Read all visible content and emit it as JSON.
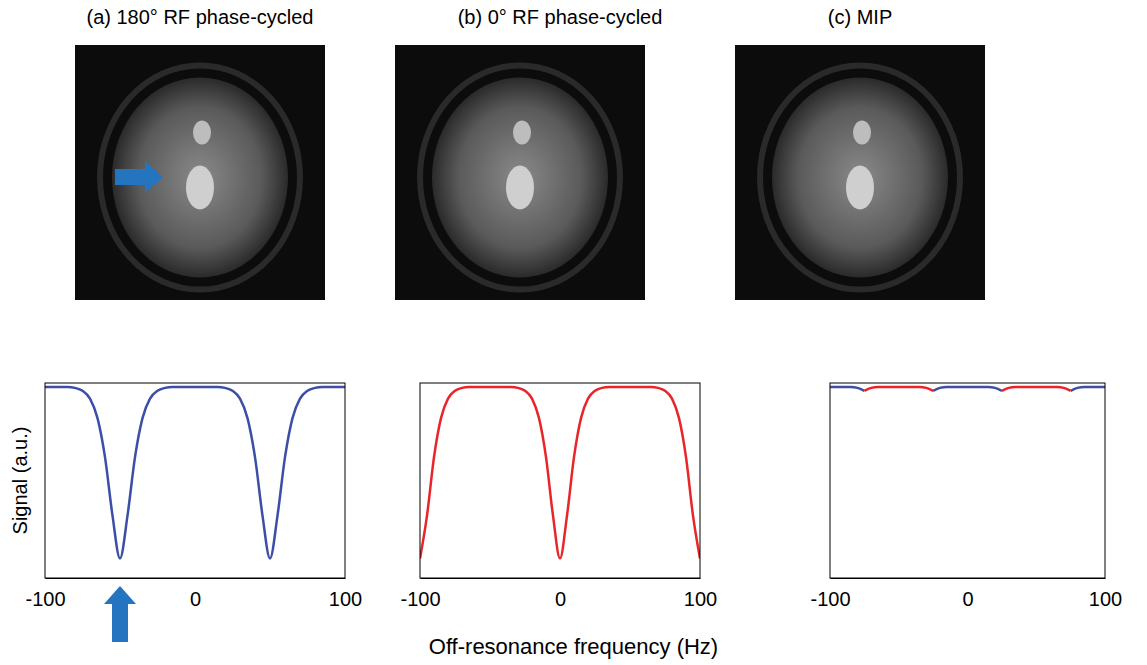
{
  "chart_data": [
    {
      "type": "line",
      "title": "(a) 180° RF phase-cycled",
      "ylabel": "Signal (a.u.)",
      "x": [
        -100,
        -95,
        -90,
        -85,
        -80,
        -75,
        -70,
        -65,
        -60,
        -55,
        -50,
        -45,
        -40,
        -35,
        -30,
        -25,
        -20,
        -15,
        -10,
        -5,
        0,
        5,
        10,
        15,
        20,
        25,
        30,
        35,
        40,
        45,
        50,
        55,
        60,
        65,
        70,
        75,
        80,
        85,
        90,
        95,
        100
      ],
      "series": [
        {
          "color": "#3c4ea6",
          "values": [
            0.98,
            0.98,
            0.98,
            0.98,
            0.975,
            0.96,
            0.92,
            0.82,
            0.62,
            0.32,
            0.1,
            0.32,
            0.62,
            0.82,
            0.92,
            0.96,
            0.975,
            0.98,
            0.98,
            0.98,
            0.98,
            0.98,
            0.98,
            0.98,
            0.975,
            0.96,
            0.92,
            0.82,
            0.62,
            0.32,
            0.1,
            0.32,
            0.62,
            0.82,
            0.92,
            0.96,
            0.975,
            0.98,
            0.98,
            0.98,
            0.98
          ]
        }
      ],
      "xlim": [
        -100,
        100
      ],
      "xticks": [
        -100,
        0,
        100
      ],
      "ylim": [
        0,
        1
      ],
      "tick_labels": "x"
    },
    {
      "type": "line",
      "title": "(b) 0° RF phase-cycled",
      "xlabel": "Off-resonance frequency (Hz)",
      "x": [
        -100,
        -95,
        -90,
        -85,
        -80,
        -75,
        -70,
        -65,
        -60,
        -55,
        -50,
        -45,
        -40,
        -35,
        -30,
        -25,
        -20,
        -15,
        -10,
        -5,
        0,
        5,
        10,
        15,
        20,
        25,
        30,
        35,
        40,
        45,
        50,
        55,
        60,
        65,
        70,
        75,
        80,
        85,
        90,
        95,
        100
      ],
      "series": [
        {
          "color": "#e8262a",
          "values": [
            0.1,
            0.32,
            0.62,
            0.82,
            0.92,
            0.96,
            0.975,
            0.98,
            0.98,
            0.98,
            0.98,
            0.98,
            0.98,
            0.98,
            0.975,
            0.96,
            0.92,
            0.82,
            0.62,
            0.32,
            0.1,
            0.32,
            0.62,
            0.82,
            0.92,
            0.96,
            0.975,
            0.98,
            0.98,
            0.98,
            0.98,
            0.98,
            0.98,
            0.98,
            0.975,
            0.96,
            0.92,
            0.82,
            0.62,
            0.32,
            0.1
          ]
        }
      ],
      "xlim": [
        -100,
        100
      ],
      "xticks": [
        -100,
        0,
        100
      ],
      "ylim": [
        0,
        1
      ],
      "tick_labels": "x"
    },
    {
      "type": "line",
      "title": "(c) MIP",
      "x": [
        -100,
        -95,
        -90,
        -85,
        -80,
        -75,
        -70,
        -65,
        -60,
        -55,
        -50,
        -45,
        -40,
        -35,
        -30,
        -25,
        -20,
        -15,
        -10,
        -5,
        0,
        5,
        10,
        15,
        20,
        25,
        30,
        35,
        40,
        45,
        50,
        55,
        60,
        65,
        70,
        75,
        80,
        85,
        90,
        95,
        100
      ],
      "series": [
        {
          "color": "#3c4ea6",
          "values": [
            0.98,
            0.98,
            0.98,
            0.98,
            0.975,
            0.96,
            null,
            null,
            null,
            null,
            null,
            null,
            null,
            null,
            null,
            0.96,
            0.975,
            0.98,
            0.98,
            0.98,
            0.98,
            0.98,
            0.98,
            0.98,
            0.975,
            0.96,
            null,
            null,
            null,
            null,
            null,
            null,
            null,
            null,
            null,
            0.96,
            0.975,
            0.98,
            0.98,
            0.98,
            0.98
          ]
        },
        {
          "color": "#e8262a",
          "values": [
            null,
            null,
            null,
            null,
            null,
            0.96,
            0.975,
            0.98,
            0.98,
            0.98,
            0.98,
            0.98,
            0.98,
            0.98,
            0.975,
            0.96,
            null,
            null,
            null,
            null,
            null,
            null,
            null,
            null,
            null,
            0.96,
            0.975,
            0.98,
            0.98,
            0.98,
            0.98,
            0.98,
            0.98,
            0.98,
            0.975,
            0.96,
            null,
            null,
            null,
            null,
            null
          ]
        }
      ],
      "xlim": [
        -100,
        100
      ],
      "xticks": [
        -100,
        0,
        100
      ],
      "ylim": [
        0,
        1
      ],
      "tick_labels": "x"
    }
  ]
}
